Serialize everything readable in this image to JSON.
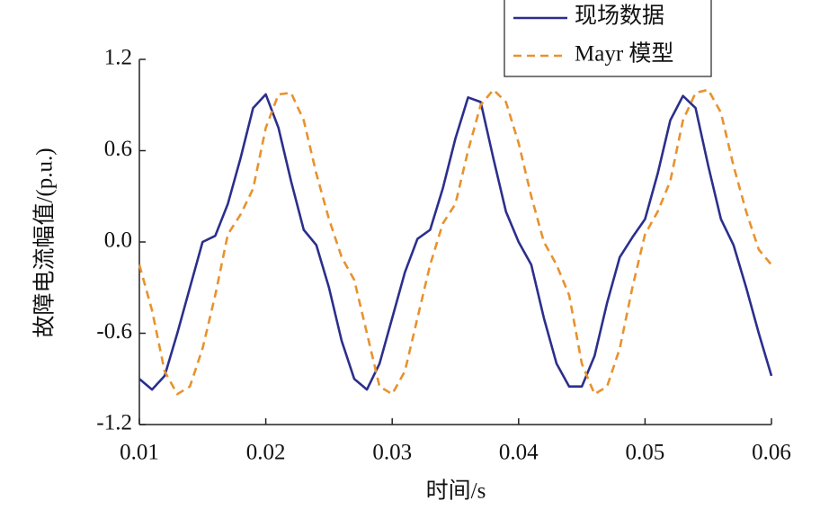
{
  "chart_data": {
    "type": "line",
    "xlabel": "时间/s",
    "ylabel": "故障电流幅值/(p.u.)",
    "x": [
      0.01,
      0.011,
      0.012,
      0.013,
      0.014,
      0.015,
      0.016,
      0.017,
      0.018,
      0.019,
      0.02,
      0.021,
      0.022,
      0.023,
      0.024,
      0.025,
      0.026,
      0.027,
      0.028,
      0.029,
      0.03,
      0.031,
      0.032,
      0.033,
      0.034,
      0.035,
      0.036,
      0.037,
      0.038,
      0.039,
      0.04,
      0.041,
      0.042,
      0.043,
      0.044,
      0.045,
      0.046,
      0.047,
      0.048,
      0.049,
      0.05,
      0.051,
      0.052,
      0.053,
      0.054,
      0.055,
      0.056,
      0.057,
      0.058,
      0.059,
      0.06
    ],
    "series": [
      {
        "name": "现场数据",
        "color": "#2b2f8c",
        "dash": false,
        "values": [
          -0.9,
          -0.97,
          -0.88,
          -0.6,
          -0.3,
          0.0,
          0.04,
          0.25,
          0.55,
          0.88,
          0.97,
          0.75,
          0.4,
          0.08,
          -0.02,
          -0.3,
          -0.65,
          -0.9,
          -0.97,
          -0.8,
          -0.5,
          -0.2,
          0.02,
          0.08,
          0.35,
          0.68,
          0.95,
          0.92,
          0.55,
          0.2,
          0.0,
          -0.15,
          -0.5,
          -0.8,
          -0.95,
          -0.95,
          -0.75,
          -0.4,
          -0.1,
          0.03,
          0.15,
          0.45,
          0.8,
          0.96,
          0.88,
          0.5,
          0.15,
          -0.02,
          -0.3,
          -0.6,
          -0.88
        ]
      },
      {
        "name": "Mayr 模型",
        "color": "#e8922e",
        "dash": true,
        "values": [
          -0.15,
          -0.45,
          -0.85,
          -1.0,
          -0.95,
          -0.7,
          -0.35,
          0.05,
          0.18,
          0.35,
          0.75,
          0.97,
          0.98,
          0.8,
          0.45,
          0.15,
          -0.1,
          -0.25,
          -0.6,
          -0.95,
          -1.0,
          -0.85,
          -0.5,
          -0.15,
          0.12,
          0.25,
          0.6,
          0.9,
          1.0,
          0.92,
          0.65,
          0.3,
          0.0,
          -0.15,
          -0.35,
          -0.8,
          -1.0,
          -0.95,
          -0.7,
          -0.3,
          0.05,
          0.2,
          0.4,
          0.8,
          0.98,
          1.0,
          0.85,
          0.5,
          0.2,
          -0.05,
          -0.15
        ]
      }
    ],
    "xlim": [
      0.01,
      0.06
    ],
    "xticks": [
      0.01,
      0.02,
      0.03,
      0.04,
      0.05,
      0.06
    ],
    "ylim": [
      -1.2,
      1.2
    ],
    "yticks": [
      -1.2,
      -0.6,
      {
        "value": 0,
        "label": "0.0"
      },
      0.6,
      1.2
    ],
    "grid": false,
    "legend": "upper right"
  }
}
